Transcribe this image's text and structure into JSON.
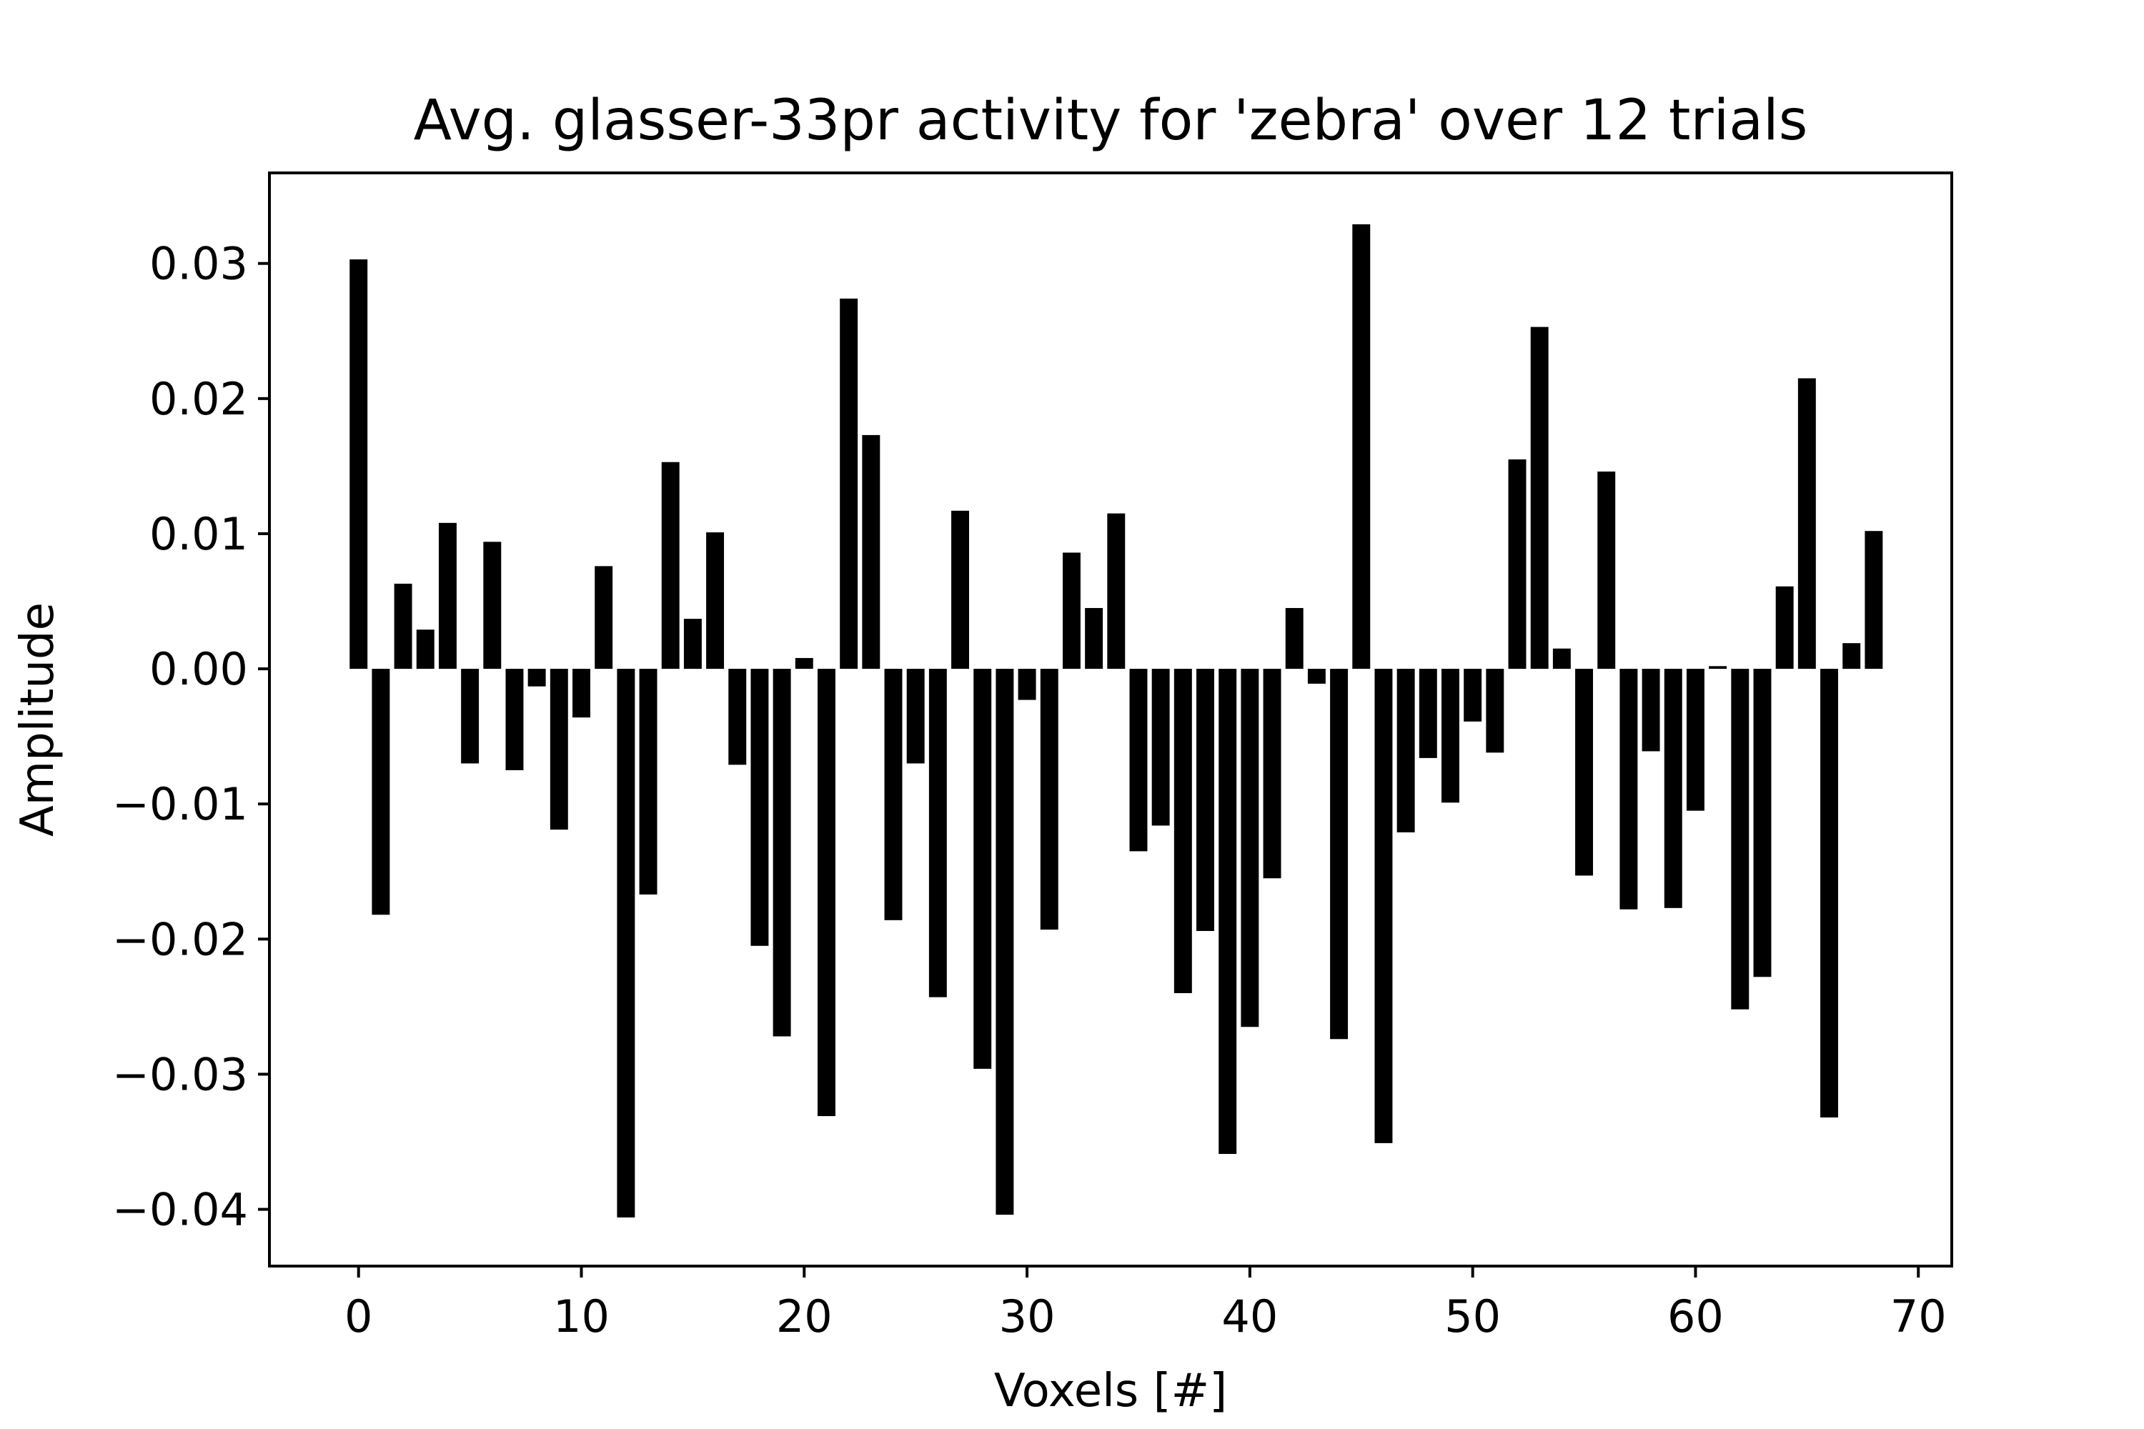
{
  "chart_data": {
    "type": "bar",
    "title": "Avg. glasser-33pr activity for 'zebra' over 12 trials",
    "xlabel": "Voxels [#]",
    "ylabel": "Amplitude",
    "xlim": [
      -4,
      71.5
    ],
    "ylim": [
      -0.0442,
      0.0367
    ],
    "xticks": [
      0,
      10,
      20,
      30,
      40,
      50,
      60,
      70
    ],
    "xtick_labels": [
      "0",
      "10",
      "20",
      "30",
      "40",
      "50",
      "60",
      "70"
    ],
    "yticks": [
      0.03,
      0.02,
      0.01,
      0.0,
      -0.01,
      -0.02,
      -0.03,
      -0.04
    ],
    "ytick_labels": [
      "0.03",
      "0.02",
      "0.01",
      "0.00",
      "−0.01",
      "−0.02",
      "−0.03",
      "−0.04"
    ],
    "bar_color": "#000000",
    "grid": false,
    "x": [
      0,
      1,
      2,
      3,
      4,
      5,
      6,
      7,
      8,
      9,
      10,
      11,
      12,
      13,
      14,
      15,
      16,
      17,
      18,
      19,
      20,
      21,
      22,
      23,
      24,
      25,
      26,
      27,
      28,
      29,
      30,
      31,
      32,
      33,
      34,
      35,
      36,
      37,
      38,
      39,
      40,
      41,
      42,
      43,
      44,
      45,
      46,
      47,
      48,
      49,
      50,
      51,
      52,
      53,
      54,
      55,
      56,
      57,
      58,
      59,
      60,
      61,
      62,
      63,
      64,
      65,
      66,
      67,
      68
    ],
    "values": [
      0.0303,
      -0.0182,
      0.0063,
      0.0029,
      0.0108,
      -0.007,
      0.0094,
      -0.0075,
      -0.0013,
      -0.0119,
      -0.0036,
      0.0076,
      -0.0406,
      -0.0167,
      0.0153,
      0.0037,
      0.0101,
      -0.0071,
      -0.0205,
      -0.0272,
      0.0008,
      -0.0331,
      0.0274,
      0.0173,
      -0.0186,
      -0.007,
      -0.0243,
      0.0117,
      -0.0296,
      -0.0404,
      -0.0023,
      -0.0193,
      0.0086,
      0.0045,
      0.0115,
      -0.0135,
      -0.0116,
      -0.024,
      -0.0194,
      -0.0359,
      -0.0265,
      -0.0155,
      0.0045,
      -0.0011,
      -0.0274,
      0.0329,
      -0.0351,
      -0.0121,
      -0.0066,
      -0.0099,
      -0.0039,
      -0.0062,
      0.0155,
      0.0253,
      0.0015,
      -0.0153,
      0.0146,
      -0.0178,
      -0.0061,
      -0.0177,
      -0.0105,
      0.0002,
      -0.0252,
      -0.0228,
      0.0061,
      0.0215,
      -0.0332,
      0.0019,
      0.0102
    ]
  }
}
